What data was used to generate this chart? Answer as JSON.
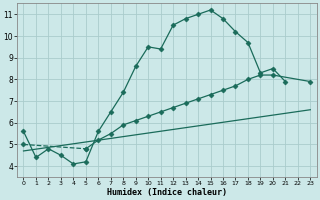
{
  "xlabel": "Humidex (Indice chaleur)",
  "background_color": "#cce8e8",
  "grid_color": "#aacccc",
  "line_color": "#1a6b5a",
  "xlim": [
    -0.5,
    23.5
  ],
  "ylim": [
    3.5,
    11.5
  ],
  "xticks": [
    0,
    1,
    2,
    3,
    4,
    5,
    6,
    7,
    8,
    9,
    10,
    11,
    12,
    13,
    14,
    15,
    16,
    17,
    18,
    19,
    20,
    21,
    22,
    23
  ],
  "yticks": [
    4,
    5,
    6,
    7,
    8,
    9,
    10,
    11
  ],
  "curve1_x": [
    0,
    1,
    2,
    3,
    4,
    5,
    6,
    7,
    8,
    9,
    10,
    11,
    12,
    13,
    14,
    15,
    16,
    17,
    18,
    19,
    20,
    21
  ],
  "curve1_y": [
    5.6,
    4.4,
    4.8,
    4.5,
    4.1,
    4.2,
    5.6,
    6.5,
    7.4,
    8.6,
    9.5,
    9.4,
    10.5,
    10.8,
    11.0,
    11.2,
    10.8,
    10.2,
    9.7,
    8.3,
    8.5,
    7.9
  ],
  "curve2_x": [
    0,
    5,
    6,
    7,
    8,
    9,
    10,
    11,
    12,
    13,
    14,
    15,
    16,
    17,
    18,
    19,
    20,
    23
  ],
  "curve2_y": [
    5.0,
    4.8,
    5.2,
    5.5,
    5.9,
    6.1,
    6.3,
    6.5,
    6.7,
    6.9,
    7.1,
    7.3,
    7.5,
    7.7,
    8.0,
    8.2,
    8.2,
    7.9
  ],
  "line3_x": [
    0,
    23
  ],
  "line3_y": [
    4.7,
    6.6
  ],
  "curve2_break_at": 1,
  "marker_size": 2.5
}
